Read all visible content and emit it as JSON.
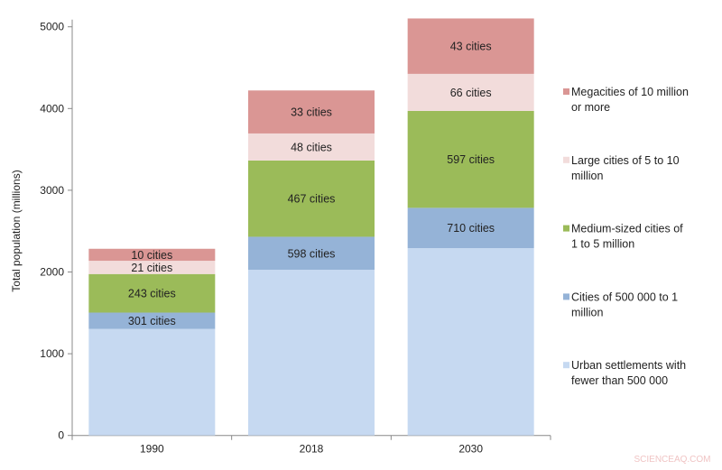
{
  "chart_data": {
    "type": "bar",
    "stacked": true,
    "ylabel": "Total population (millions)",
    "xlabel": "",
    "ylim": [
      0,
      5000
    ],
    "yticks": [
      0,
      1000,
      2000,
      3000,
      4000,
      5000
    ],
    "grid": false,
    "legend_position": "right",
    "categories": [
      "1990",
      "2018",
      "2030"
    ],
    "series": [
      {
        "name": "Urban settlements with fewer than 500 000",
        "color": "#c6d9f1",
        "values": [
          1304,
          2027,
          2292
        ],
        "labels": [
          "",
          "",
          ""
        ]
      },
      {
        "name": "Cities of 500 000 to 1 million",
        "color": "#95b3d7",
        "values": [
          199,
          404,
          493
        ],
        "labels": [
          "301 cities",
          "598 cities",
          "710 cities"
        ]
      },
      {
        "name": "Medium-sized cities of 1 to 5 million",
        "color": "#9bbb59",
        "values": [
          472,
          933,
          1186
        ],
        "labels": [
          "243 cities",
          "467 cities",
          "597 cities"
        ]
      },
      {
        "name": "Large cities of 5 to 10 million",
        "color": "#f2dcdb",
        "values": [
          162,
          331,
          453
        ],
        "labels": [
          "21 cities",
          "48 cities",
          "66 cities"
        ]
      },
      {
        "name": "Megacities of 10 million or more",
        "color": "#da9694",
        "values": [
          147,
          526,
          678
        ],
        "labels": [
          "10 cities",
          "33 cities",
          "43 cities"
        ]
      }
    ],
    "legend_lines": [
      [
        "Megacities of 10 million",
        "or more"
      ],
      [
        "Large cities of 5 to 10",
        "million"
      ],
      [
        "Medium-sized cities of",
        "1 to 5 million"
      ],
      [
        "Cities of 500 000 to 1",
        "million"
      ],
      [
        "Urban settlements with",
        "fewer than 500 000"
      ]
    ]
  },
  "watermark": "SCIENCEAQ.COM"
}
